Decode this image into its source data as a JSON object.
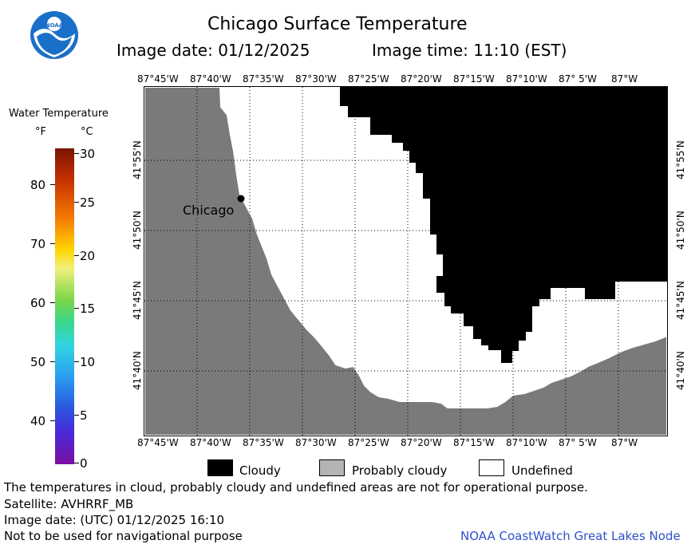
{
  "header": {
    "title": "Chicago Surface Temperature",
    "image_date": "Image date: 01/12/2025",
    "image_time": "Image time: 11:10 (EST)"
  },
  "logo": {
    "text": "NOAA"
  },
  "colorbar": {
    "title": "Water Temperature",
    "unit_f": "°F",
    "unit_c": "°C",
    "f_ticks": [
      "80",
      "70",
      "60",
      "50",
      "40"
    ],
    "c_ticks": [
      "30",
      "25",
      "20",
      "15",
      "10",
      "5",
      "0"
    ]
  },
  "map": {
    "lon_labels": [
      "87°45'W",
      "87°40'W",
      "87°35'W",
      "87°30'W",
      "87°25'W",
      "87°20'W",
      "87°15'W",
      "87°10'W",
      "87° 5'W",
      "87°W"
    ],
    "lat_labels": [
      "41°55'N",
      "41°50'N",
      "41°45'N",
      "41°40'N"
    ],
    "city_label": "Chicago",
    "colors": {
      "land": "#7a7a7a",
      "cloud": "#000000",
      "undefined": "#ffffff",
      "probably_cloudy": "#b4b4b4"
    }
  },
  "legend": {
    "items": [
      {
        "label": "Cloudy",
        "color": "#000000"
      },
      {
        "label": "Probably cloudy",
        "color": "#b4b4b4"
      },
      {
        "label": "Undefined",
        "color": "#ffffff"
      }
    ]
  },
  "footer": {
    "note": "The temperatures in cloud, probably cloudy and undefined areas are not for operational purpose.",
    "satellite": "Satellite: AVHRRF_MB",
    "utc_date": "Image date: (UTC) 01/12/2025  16:10",
    "nav_warning": "Not to be used for navigational purpose",
    "credit": "NOAA CoastWatch Great Lakes Node",
    "credit_color": "#2f52c9"
  }
}
